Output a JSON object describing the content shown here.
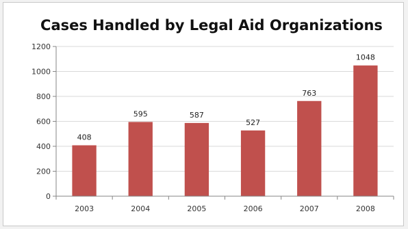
{
  "chart_data": {
    "type": "bar",
    "title": "Cases Handled by Legal Aid Organizations",
    "categories": [
      "2003",
      "2004",
      "2005",
      "2006",
      "2007",
      "2008"
    ],
    "values": [
      408,
      595,
      587,
      527,
      763,
      1048
    ],
    "data_labels": [
      "408",
      "595",
      "587",
      "527",
      "763",
      "1048"
    ],
    "xlabel": "",
    "ylabel": "",
    "ylim": [
      0,
      1200
    ],
    "yticks": [
      "0",
      "200",
      "400",
      "600",
      "800",
      "1000",
      "1200"
    ],
    "grid": true,
    "legend": "none",
    "bar_color": "#c0504d",
    "grid_color": "#d9d9d9",
    "axis_color": "#868686"
  }
}
